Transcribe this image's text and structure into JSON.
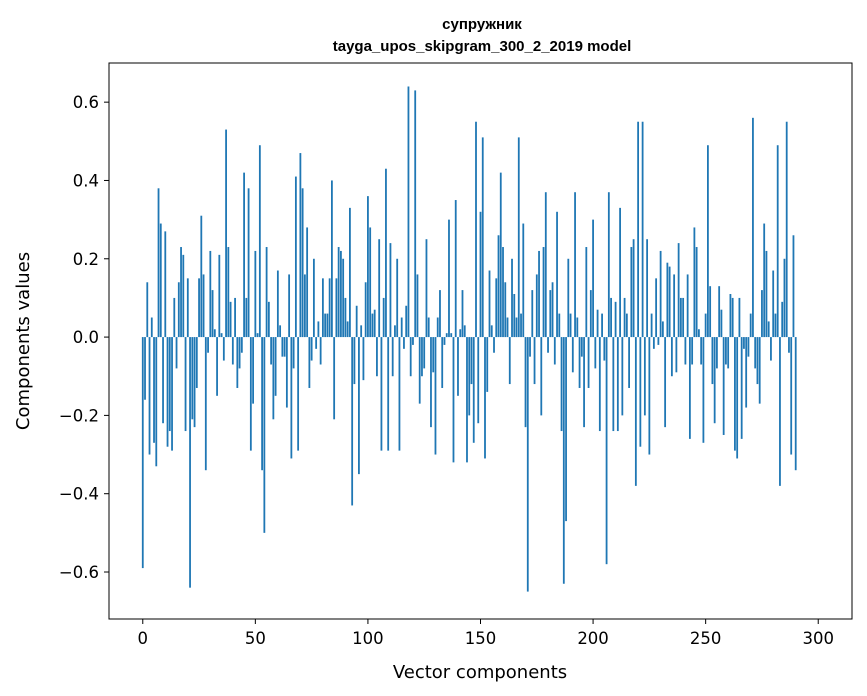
{
  "chart_data": {
    "type": "bar",
    "title": "супружник",
    "subtitle": "tayga_upos_skipgram_300_2_2019 model",
    "xlabel": "Vector components",
    "ylabel": "Components values",
    "xlim": [
      -15,
      315
    ],
    "ylim": [
      -0.72,
      0.7
    ],
    "xticks": [
      0,
      50,
      100,
      150,
      200,
      250,
      300
    ],
    "xtick_labels": [
      "0",
      "50",
      "100",
      "150",
      "200",
      "250",
      "300"
    ],
    "yticks": [
      -0.6,
      -0.4,
      -0.2,
      0.0,
      0.2,
      0.4,
      0.6
    ],
    "ytick_labels": [
      "−0.6",
      "−0.4",
      "−0.2",
      "0.0",
      "0.2",
      "0.4",
      "0.6"
    ],
    "bar_color": "#1f77b4",
    "values": [
      -0.59,
      -0.16,
      0.14,
      -0.3,
      0.05,
      -0.27,
      -0.33,
      0.38,
      0.29,
      -0.22,
      0.27,
      -0.28,
      -0.24,
      -0.29,
      0.1,
      -0.08,
      0.14,
      0.23,
      0.21,
      -0.24,
      0.15,
      -0.64,
      -0.21,
      -0.23,
      -0.13,
      0.15,
      0.31,
      0.16,
      -0.34,
      -0.04,
      0.22,
      0.12,
      0.02,
      -0.15,
      0.21,
      0.01,
      -0.06,
      0.53,
      0.23,
      0.09,
      -0.07,
      0.1,
      -0.13,
      -0.08,
      -0.04,
      0.42,
      0.1,
      0.38,
      -0.29,
      -0.17,
      0.22,
      0.01,
      0.49,
      -0.34,
      -0.5,
      0.23,
      0.09,
      -0.07,
      -0.21,
      -0.15,
      0.17,
      0.03,
      -0.05,
      -0.05,
      -0.18,
      0.16,
      -0.31,
      -0.08,
      0.41,
      -0.29,
      0.47,
      0.38,
      0.16,
      0.28,
      -0.13,
      -0.06,
      0.2,
      -0.03,
      0.04,
      -0.07,
      0.15,
      0.06,
      0.06,
      0.15,
      0.4,
      -0.21,
      0.15,
      0.23,
      0.22,
      0.2,
      0.1,
      0.04,
      0.33,
      -0.43,
      -0.12,
      0.08,
      -0.35,
      0.03,
      -0.11,
      0.14,
      0.36,
      0.28,
      0.06,
      0.07,
      -0.1,
      0.25,
      -0.29,
      0.1,
      0.43,
      -0.29,
      0.24,
      -0.1,
      0.03,
      0.2,
      -0.29,
      0.05,
      -0.03,
      0.08,
      0.64,
      -0.1,
      -0.02,
      0.63,
      0.16,
      -0.17,
      -0.1,
      -0.08,
      0.25,
      0.05,
      -0.23,
      -0.09,
      -0.3,
      0.05,
      0.12,
      -0.13,
      -0.02,
      0.01,
      0.3,
      0.01,
      -0.32,
      0.35,
      -0.15,
      0.02,
      0.12,
      0.03,
      -0.32,
      -0.2,
      -0.12,
      -0.27,
      0.55,
      -0.22,
      0.32,
      0.51,
      -0.31,
      -0.14,
      0.17,
      0.03,
      -0.04,
      0.15,
      0.26,
      0.42,
      0.23,
      0.14,
      0.05,
      -0.12,
      0.2,
      0.11,
      0.05,
      0.51,
      0.06,
      0.29,
      -0.23,
      -0.65,
      -0.05,
      0.12,
      -0.12,
      0.16,
      0.22,
      -0.2,
      0.23,
      0.37,
      -0.04,
      0.12,
      0.14,
      -0.07,
      0.32,
      0.06,
      -0.24,
      -0.63,
      -0.47,
      0.2,
      0.06,
      -0.09,
      0.37,
      0.05,
      -0.13,
      -0.05,
      -0.23,
      0.23,
      -0.13,
      0.12,
      0.3,
      -0.08,
      0.07,
      -0.24,
      0.06,
      -0.06,
      -0.58,
      0.37,
      0.1,
      -0.24,
      0.09,
      -0.24,
      0.33,
      -0.2,
      0.1,
      0.06,
      -0.13,
      0.23,
      0.25,
      -0.38,
      0.55,
      -0.28,
      0.55,
      -0.2,
      0.25,
      -0.3,
      0.06,
      -0.03,
      0.15,
      -0.02,
      0.22,
      0.04,
      -0.23,
      0.19,
      0.18,
      -0.1,
      0.16,
      -0.09,
      0.24,
      0.1,
      0.1,
      -0.07,
      0.16,
      -0.26,
      -0.07,
      0.28,
      0.23,
      0.02,
      -0.07,
      -0.27,
      0.06,
      0.49,
      0.13,
      -0.12,
      -0.22,
      -0.08,
      0.13,
      0.07,
      -0.25,
      -0.07,
      -0.08,
      0.11,
      0.1,
      -0.29,
      -0.31,
      0.1,
      -0.26,
      -0.03,
      -0.18,
      -0.05,
      0.06,
      0.56,
      -0.08,
      -0.12,
      -0.17,
      0.12,
      0.29,
      0.22,
      0.04,
      -0.06,
      0.17,
      0.06,
      0.49,
      -0.38,
      0.09,
      0.2,
      0.55,
      -0.04,
      -0.3,
      0.26,
      -0.34
    ]
  }
}
